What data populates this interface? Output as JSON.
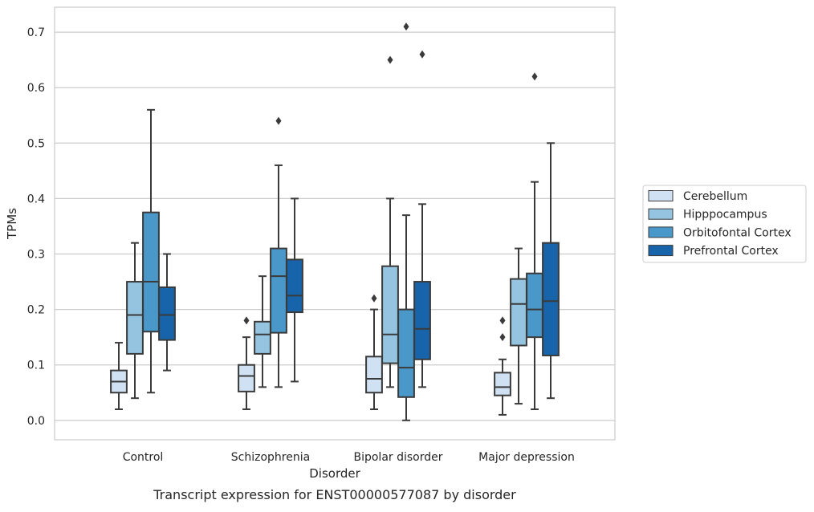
{
  "chart_data": {
    "type": "box",
    "xlabel": "Disorder",
    "ylabel": "TPMs",
    "caption": "Transcript expression for ENST00000577087 by disorder",
    "ylim": [
      -0.035,
      0.745
    ],
    "yticks": [
      0.0,
      0.1,
      0.2,
      0.3,
      0.4,
      0.5,
      0.6,
      0.7
    ],
    "ytick_labels": [
      "0.0",
      "0.1",
      "0.2",
      "0.3",
      "0.4",
      "0.5",
      "0.6",
      "0.7"
    ],
    "grid": "horizontal",
    "legend_position": "right",
    "categories": [
      "Control",
      "Schizophrenia",
      "Bipolar disorder",
      "Major depression"
    ],
    "series": [
      {
        "name": "Cerebellum",
        "color": "#cfe1f2",
        "boxes": [
          {
            "whislo": 0.02,
            "q1": 0.05,
            "med": 0.07,
            "q3": 0.09,
            "whishi": 0.14,
            "fliers": []
          },
          {
            "whislo": 0.02,
            "q1": 0.052,
            "med": 0.08,
            "q3": 0.1,
            "whishi": 0.15,
            "fliers": [
              0.18
            ]
          },
          {
            "whislo": 0.02,
            "q1": 0.05,
            "med": 0.075,
            "q3": 0.115,
            "whishi": 0.2,
            "fliers": [
              0.22
            ]
          },
          {
            "whislo": 0.01,
            "q1": 0.045,
            "med": 0.06,
            "q3": 0.086,
            "whishi": 0.11,
            "fliers": [
              0.15,
              0.18
            ]
          }
        ]
      },
      {
        "name": "Hipppocampus",
        "color": "#94c4df",
        "boxes": [
          {
            "whislo": 0.04,
            "q1": 0.12,
            "med": 0.19,
            "q3": 0.25,
            "whishi": 0.32,
            "fliers": []
          },
          {
            "whislo": 0.06,
            "q1": 0.12,
            "med": 0.155,
            "q3": 0.178,
            "whishi": 0.26,
            "fliers": []
          },
          {
            "whislo": 0.06,
            "q1": 0.103,
            "med": 0.155,
            "q3": 0.278,
            "whishi": 0.4,
            "fliers": [
              0.65
            ]
          },
          {
            "whislo": 0.03,
            "q1": 0.135,
            "med": 0.21,
            "q3": 0.255,
            "whishi": 0.31,
            "fliers": []
          }
        ]
      },
      {
        "name": "Orbitofontal Cortex",
        "color": "#4a98c9",
        "boxes": [
          {
            "whislo": 0.05,
            "q1": 0.16,
            "med": 0.25,
            "q3": 0.375,
            "whishi": 0.56,
            "fliers": []
          },
          {
            "whislo": 0.06,
            "q1": 0.158,
            "med": 0.26,
            "q3": 0.31,
            "whishi": 0.46,
            "fliers": [
              0.54
            ]
          },
          {
            "whislo": 0.0,
            "q1": 0.042,
            "med": 0.095,
            "q3": 0.2,
            "whishi": 0.37,
            "fliers": [
              0.71
            ]
          },
          {
            "whislo": 0.02,
            "q1": 0.15,
            "med": 0.2,
            "q3": 0.265,
            "whishi": 0.43,
            "fliers": [
              0.62
            ]
          }
        ]
      },
      {
        "name": "Prefrontal Cortex",
        "color": "#1764ab",
        "boxes": [
          {
            "whislo": 0.09,
            "q1": 0.145,
            "med": 0.19,
            "q3": 0.24,
            "whishi": 0.3,
            "fliers": []
          },
          {
            "whislo": 0.07,
            "q1": 0.195,
            "med": 0.225,
            "q3": 0.29,
            "whishi": 0.4,
            "fliers": []
          },
          {
            "whislo": 0.06,
            "q1": 0.11,
            "med": 0.165,
            "q3": 0.25,
            "whishi": 0.39,
            "fliers": [
              0.66
            ]
          },
          {
            "whislo": 0.04,
            "q1": 0.117,
            "med": 0.215,
            "q3": 0.32,
            "whishi": 0.5,
            "fliers": []
          }
        ]
      }
    ]
  }
}
